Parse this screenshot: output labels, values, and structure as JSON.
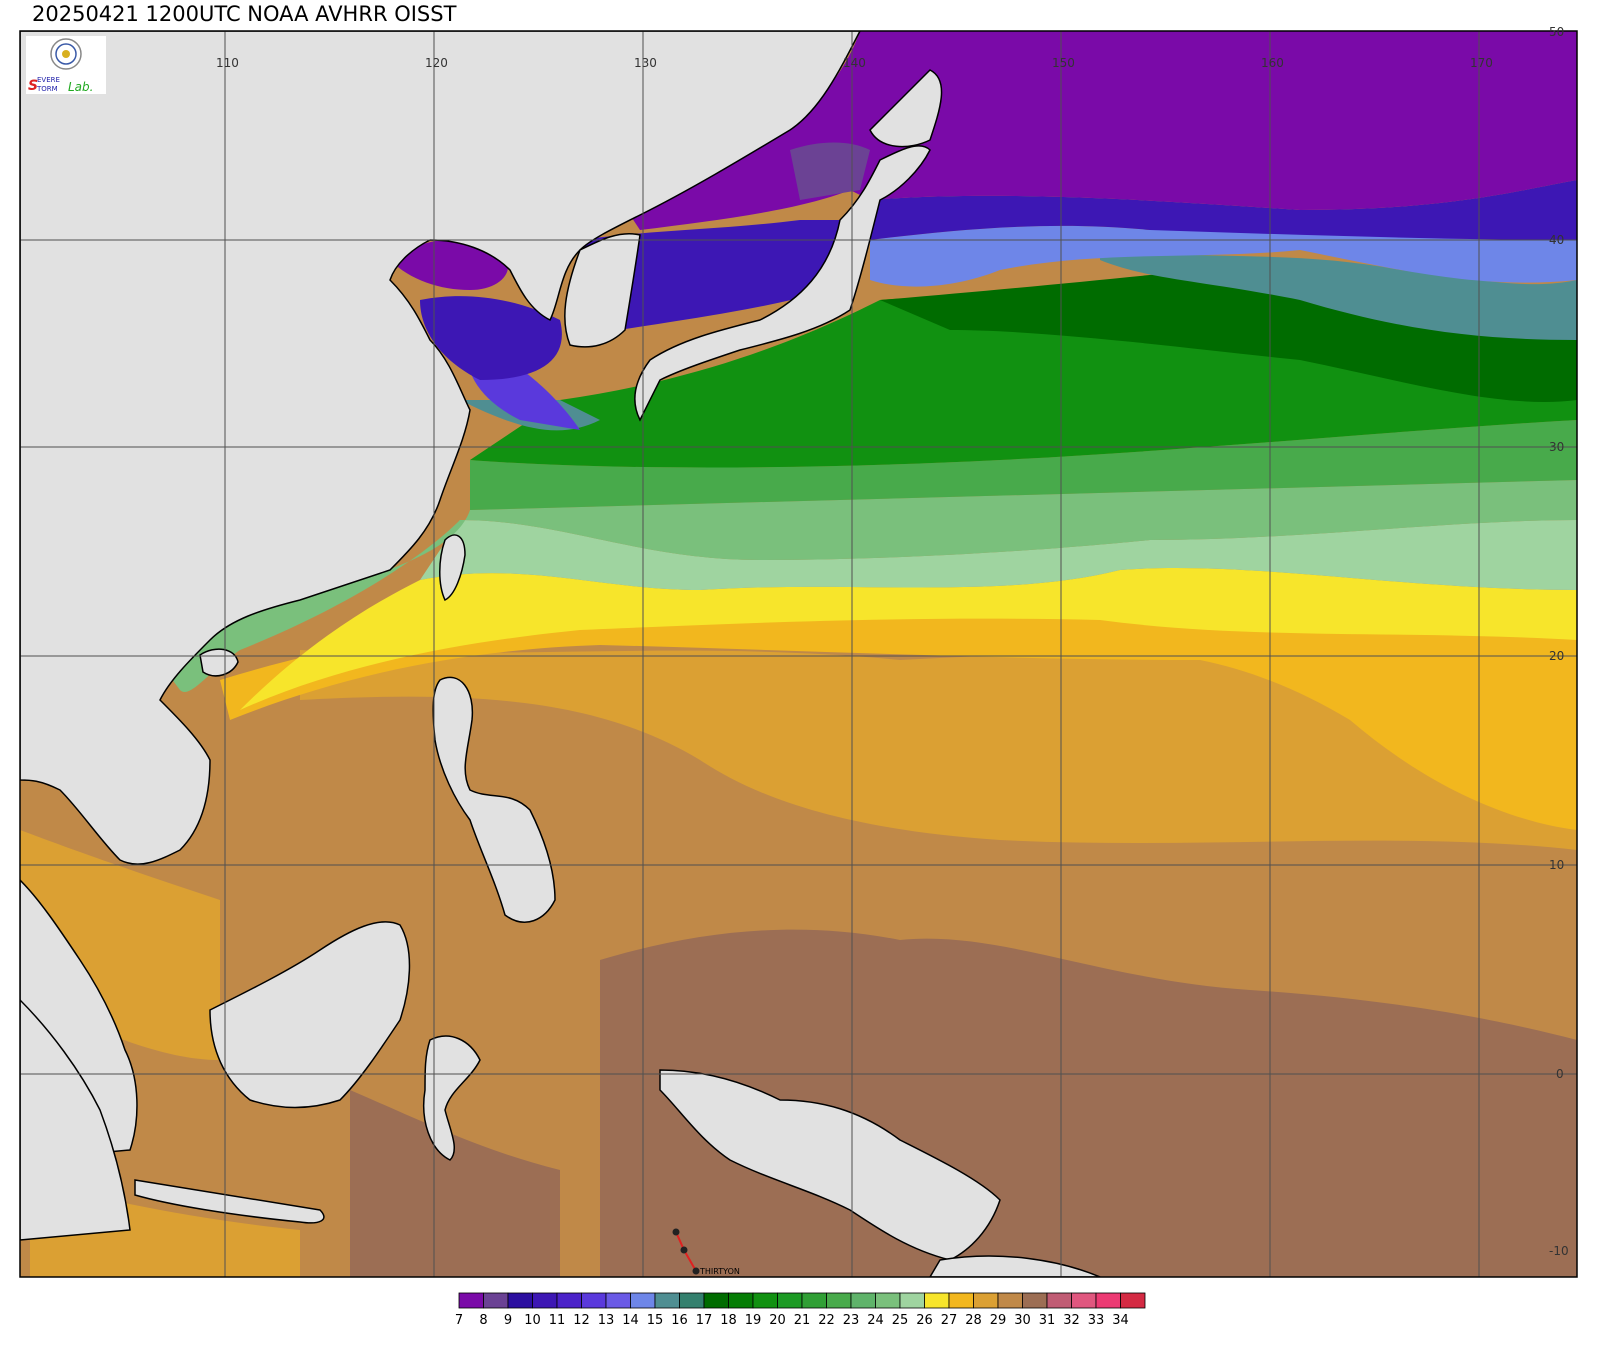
{
  "title": "20250421 1200UTC NOAA AVHRR OISST",
  "logo": {
    "emblem_icon": "agency-seal-icon",
    "text_parts": [
      "S",
      "EVERE",
      "S",
      "TORM",
      "Lab."
    ]
  },
  "map": {
    "lon_ticks": [
      "110",
      "120",
      "130",
      "140",
      "150",
      "160",
      "170"
    ],
    "lat_ticks": [
      "50",
      "40",
      "30",
      "20",
      "10",
      "0",
      "-10"
    ],
    "storm_label": "THIRTYON",
    "colors": {
      "land": "#e1e1e1",
      "coast": "#000000",
      "grid": "#505050"
    }
  },
  "legend": {
    "labels": [
      "7",
      "8",
      "9",
      "10",
      "11",
      "12",
      "13",
      "14",
      "15",
      "16",
      "17",
      "18",
      "19",
      "20",
      "21",
      "22",
      "23",
      "24",
      "25",
      "26",
      "27",
      "28",
      "29",
      "30",
      "31",
      "32",
      "33",
      "34"
    ],
    "colors": [
      "#7a0aa8",
      "#6b4294",
      "#2c0fa0",
      "#3d17b4",
      "#4b22c9",
      "#5a39dc",
      "#6a5ae6",
      "#6e86e8",
      "#4f8e92",
      "#34806e",
      "#006c00",
      "#057d05",
      "#119111",
      "#1c9a24",
      "#309f35",
      "#48aa4b",
      "#5fb36a",
      "#7ac07c",
      "#9fd4a0",
      "#f7e52b",
      "#f2b71e",
      "#dba033",
      "#c08948",
      "#9c6e54",
      "#c05c74",
      "#e0577f",
      "#ec3a73",
      "#d42a43"
    ]
  }
}
